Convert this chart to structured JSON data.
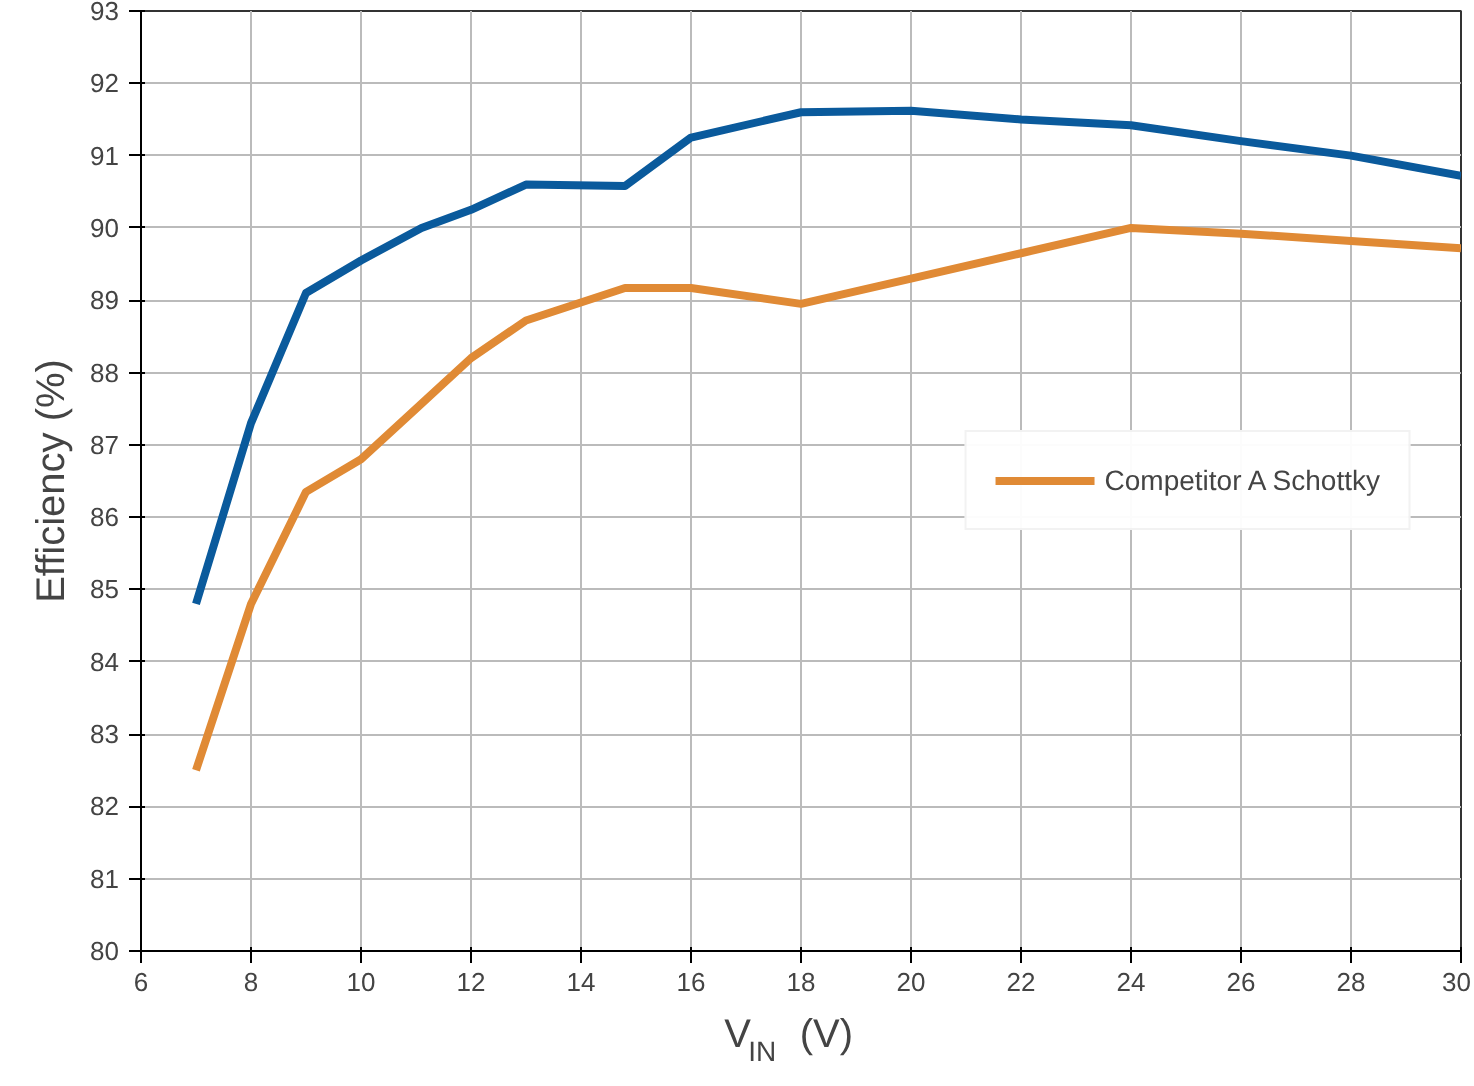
{
  "chart_data": {
    "type": "line",
    "xlabel": "V$_{IN}$ (V)",
    "ylabel": "Efficiency (%)",
    "xlim": [
      6,
      30
    ],
    "xticks": [
      6,
      8,
      10,
      12,
      14,
      16,
      18,
      20,
      22,
      24,
      26,
      28,
      30
    ],
    "ylim": [
      80,
      93
    ],
    "yticks": [
      80,
      81,
      82,
      83,
      84,
      85,
      86,
      87,
      88,
      89,
      90,
      91,
      92,
      93
    ],
    "grid": true,
    "legend": "right",
    "line_style": "solid",
    "series": [
      {
        "color": "#0a5a9c",
        "x": [
          7,
          8,
          9,
          10,
          11.1,
          12,
          13,
          14.8,
          16,
          18,
          20,
          22,
          24,
          26,
          28,
          30
        ],
        "values": [
          84.8,
          87.3,
          89.1,
          89.55,
          90.0,
          90.25,
          90.6,
          90.58,
          91.25,
          91.6,
          91.62,
          91.5,
          91.42,
          91.2,
          91.0,
          90.72
        ]
      },
      {
        "name": "Competitor A Schottky",
        "color": "#e08a35",
        "x": [
          7,
          8,
          9,
          10,
          11,
          12,
          13,
          14.8,
          16,
          18,
          20,
          22,
          24,
          26,
          28,
          30
        ],
        "values": [
          82.5,
          84.8,
          86.35,
          86.8,
          87.5,
          88.2,
          88.72,
          89.17,
          89.17,
          88.95,
          89.3,
          89.65,
          90.0,
          89.92,
          89.82,
          89.72
        ]
      }
    ]
  }
}
